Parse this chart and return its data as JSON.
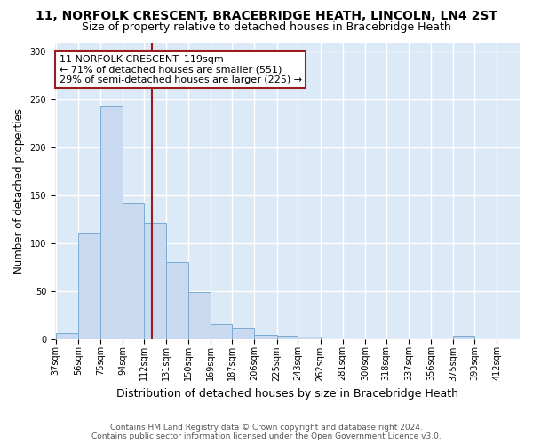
{
  "title": "11, NORFOLK CRESCENT, BRACEBRIDGE HEATH, LINCOLN, LN4 2ST",
  "subtitle": "Size of property relative to detached houses in Bracebridge Heath",
  "xlabel": "Distribution of detached houses by size in Bracebridge Heath",
  "ylabel": "Number of detached properties",
  "bar_color": "#c9d9f0",
  "bar_edgecolor": "#7aabd4",
  "bar_linewidth": 0.7,
  "background_color": "#dce9f7",
  "fig_background": "#ffffff",
  "grid_color": "#ffffff",
  "vline_value": 119,
  "vline_color": "#9b1c1c",
  "annotation_text": "11 NORFOLK CRESCENT: 119sqm\n← 71% of detached houses are smaller (551)\n29% of semi-detached houses are larger (225) →",
  "annotation_box_edgecolor": "#9b1c1c",
  "annotation_fontsize": 8.0,
  "bin_edges": [
    37,
    56,
    75,
    94,
    112,
    131,
    150,
    169,
    187,
    206,
    225,
    243,
    262,
    281,
    300,
    318,
    337,
    356,
    375,
    393,
    412
  ],
  "bin_heights": [
    6,
    111,
    244,
    142,
    121,
    80,
    49,
    15,
    12,
    4,
    3,
    2,
    0,
    0,
    0,
    0,
    0,
    0,
    3,
    0
  ],
  "tick_labels": [
    "37sqm",
    "56sqm",
    "75sqm",
    "94sqm",
    "112sqm",
    "131sqm",
    "150sqm",
    "169sqm",
    "187sqm",
    "206sqm",
    "225sqm",
    "243sqm",
    "262sqm",
    "281sqm",
    "300sqm",
    "318sqm",
    "337sqm",
    "356sqm",
    "375sqm",
    "393sqm",
    "412sqm"
  ],
  "ylim": [
    0,
    310
  ],
  "yticks": [
    0,
    50,
    100,
    150,
    200,
    250,
    300
  ],
  "footer_text": "Contains HM Land Registry data © Crown copyright and database right 2024.\nContains public sector information licensed under the Open Government Licence v3.0.",
  "title_fontsize": 10,
  "subtitle_fontsize": 9,
  "xlabel_fontsize": 9,
  "ylabel_fontsize": 8.5,
  "footer_fontsize": 6.5,
  "tick_fontsize": 7
}
